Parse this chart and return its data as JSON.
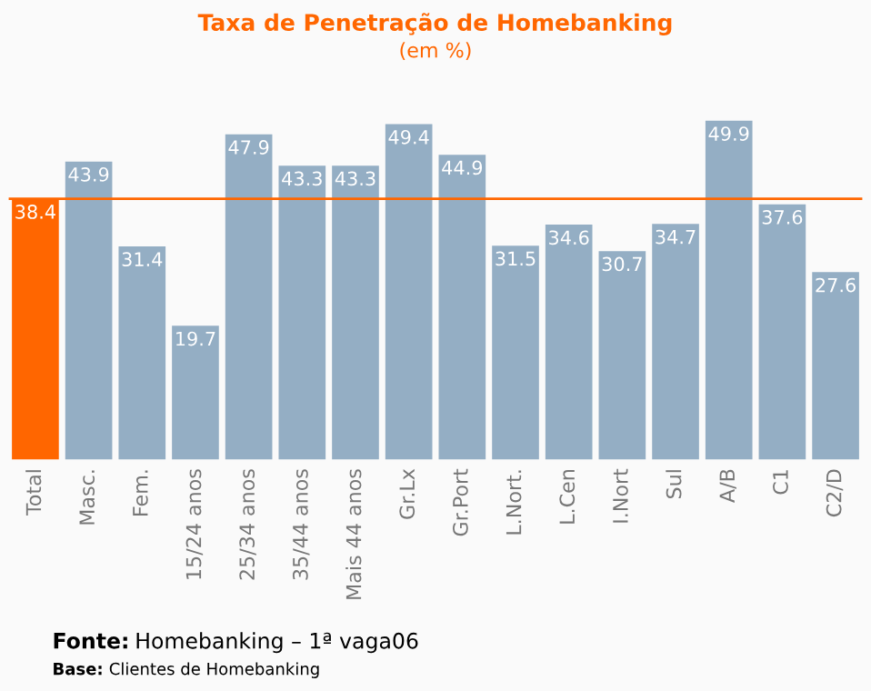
{
  "chart_data": {
    "type": "bar",
    "title": "Taxa de Penetração de Homebanking",
    "subtitle": "(em %)",
    "categories": [
      "Total",
      "Masc.",
      "Fem.",
      "15/24 anos",
      "25/34 anos",
      "35/44 anos",
      "Mais 44 anos",
      "Gr.Lx",
      "Gr.Port",
      "L.Nort.",
      "L.Cen",
      "I.Nort",
      "Sul",
      "A/B",
      "C1",
      "C2/D"
    ],
    "values": [
      38.4,
      43.9,
      31.4,
      19.7,
      47.9,
      43.3,
      43.3,
      49.4,
      44.9,
      31.5,
      34.6,
      30.7,
      34.7,
      49.9,
      37.6,
      27.6
    ],
    "colors": [
      "#ff6600",
      "#94aec4",
      "#94aec4",
      "#94aec4",
      "#94aec4",
      "#94aec4",
      "#94aec4",
      "#94aec4",
      "#94aec4",
      "#94aec4",
      "#94aec4",
      "#94aec4",
      "#94aec4",
      "#94aec4",
      "#94aec4",
      "#94aec4"
    ],
    "data_labels": true,
    "grid": false,
    "legend": false,
    "ref_lines": [
      {
        "axis": "y",
        "value": 38.4,
        "label": null,
        "color": "#ff6600"
      }
    ],
    "annotations": [
      "Fonte: Homebanking – 1ª vaga06",
      "Base: Clientes de Homebanking"
    ]
  }
}
